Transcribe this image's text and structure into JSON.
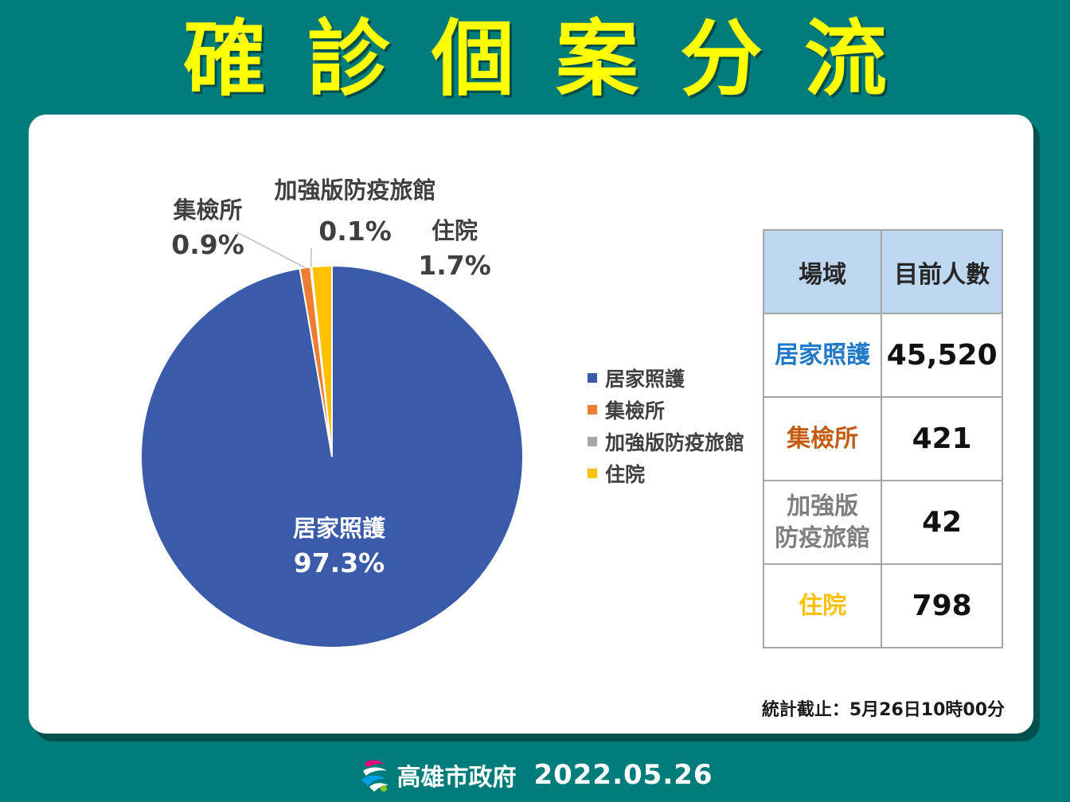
{
  "title": "確診個案分流",
  "chart_data": {
    "type": "pie",
    "title": "",
    "slices": [
      {
        "label": "居家照護",
        "value": 97.3,
        "value_label": "97.3%",
        "color": "#3a5ba9"
      },
      {
        "label": "集檢所",
        "value": 0.9,
        "value_label": "0.9%",
        "color": "#ed7d31"
      },
      {
        "label": "加強版防疫旅館",
        "value": 0.1,
        "value_label": "0.1%",
        "color": "#a5a5a5"
      },
      {
        "label": "住院",
        "value": 1.7,
        "value_label": "1.7%",
        "color": "#ffc000"
      }
    ],
    "legend_position": "right"
  },
  "table": {
    "headers": [
      "場域",
      "目前人數"
    ],
    "rows": [
      {
        "place": "居家照護",
        "count": "45,520",
        "color": "#1f78c8"
      },
      {
        "place": "集檢所",
        "count": "421",
        "color": "#c55a11"
      },
      {
        "place": "加強版\n防疫旅館",
        "count": "42",
        "color": "#7f7f7f"
      },
      {
        "place": "住院",
        "count": "798",
        "color": "#ffc000"
      }
    ]
  },
  "footnote": "統計截止：5月26日10時00分",
  "footer": {
    "org": "高雄市政府",
    "date": "2022.05.26",
    "logo_icon": "kaohsiung-logo-icon"
  }
}
